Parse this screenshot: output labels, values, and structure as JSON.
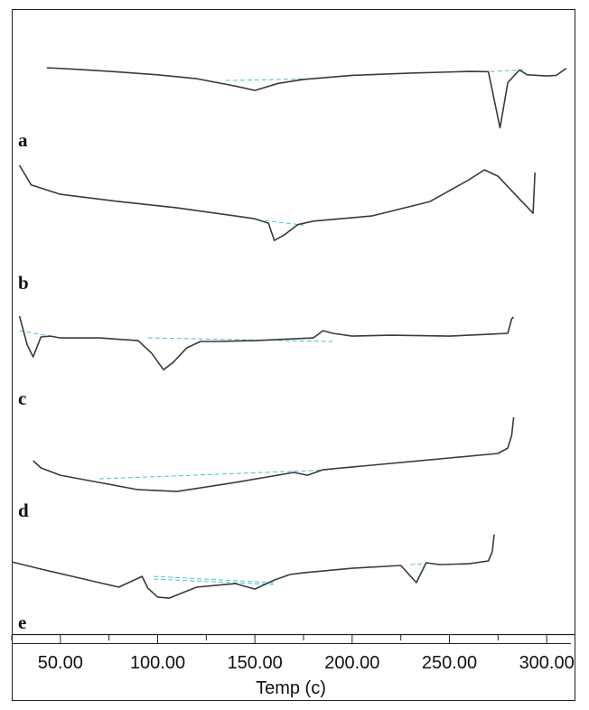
{
  "chart_data": {
    "type": "line",
    "xlabel": "Temp (c)",
    "xlim": [
      25,
      312
    ],
    "x_ticks": [
      50,
      100,
      150,
      200,
      250,
      300
    ],
    "x_tick_labels": [
      "50.00",
      "100.00",
      "150.00",
      "200.00",
      "250.00",
      "300.00"
    ],
    "grid": false,
    "colors": {
      "trace": "#3a3a3a",
      "baseline": "#3fc4d4",
      "axis": "#222222"
    },
    "series": [
      {
        "name": "a",
        "x": [
          43,
          60,
          80,
          100,
          120,
          140,
          150,
          162,
          175,
          200,
          230,
          260,
          270,
          276,
          280,
          286,
          290,
          300,
          305,
          310
        ],
        "y": [
          0.0,
          -1.7,
          -4.1,
          -6.8,
          -10.6,
          -17.8,
          -22.0,
          -15.2,
          -11.3,
          -7.4,
          -5.2,
          -3.6,
          -3.8,
          -58.3,
          -14.5,
          -2.1,
          -6.8,
          -8.0,
          -7.4,
          -0.6
        ],
        "baselines": [
          {
            "x": [
              135,
              178
            ],
            "y": [
              -12.4,
              -10.8
            ]
          },
          {
            "x": [
              271,
              288
            ],
            "y": [
              -3.6,
              -2.1
            ]
          }
        ]
      },
      {
        "name": "b",
        "x": [
          29,
          35,
          50,
          80,
          110,
          140,
          150,
          157,
          160,
          165,
          172,
          180,
          210,
          240,
          260,
          268,
          275,
          285,
          290,
          293,
          294
        ],
        "y": [
          0.0,
          -19.0,
          -28.2,
          -35.2,
          -41.3,
          -49.2,
          -51.9,
          -56.2,
          -73.0,
          -67.7,
          -57.6,
          -54.2,
          -49.2,
          -35.2,
          -14.1,
          -4.4,
          -10.6,
          -30.8,
          -40.5,
          -46.6,
          -7.0
        ],
        "baselines": [
          {
            "x": [
              155,
              175
            ],
            "y": [
              -53.7,
              -58.1
            ]
          }
        ]
      },
      {
        "name": "c",
        "x": [
          29,
          33,
          36,
          40,
          45,
          50,
          70,
          90,
          97,
          103,
          108,
          115,
          122,
          130,
          150,
          180,
          185,
          190,
          200,
          220,
          250,
          270,
          280,
          282,
          283
        ],
        "y": [
          0.0,
          -28.2,
          -39.6,
          -20.2,
          -19.4,
          -21.1,
          -21.1,
          -23.8,
          -36.1,
          -52.0,
          -44.9,
          -30.8,
          -24.6,
          -24.6,
          -23.8,
          -21.1,
          -14.1,
          -16.7,
          -19.4,
          -18.5,
          -19.4,
          -17.6,
          -16.7,
          -2.6,
          -0.9
        ],
        "baselines": [
          {
            "x": [
              29,
              45
            ],
            "y": [
              -14.1,
              -19.4
            ]
          },
          {
            "x": [
              95,
              190
            ],
            "y": [
              -21.1,
              -24.6
            ]
          }
        ]
      },
      {
        "name": "d",
        "x": [
          36,
          40,
          50,
          70,
          90,
          110,
          140,
          170,
          177,
          185,
          210,
          250,
          275,
          280,
          282,
          283
        ],
        "y": [
          0.0,
          -7.0,
          -14.1,
          -21.1,
          -28.2,
          -29.9,
          -21.1,
          -11.4,
          -14.1,
          -8.8,
          -4.4,
          2.6,
          7.0,
          12.3,
          24.6,
          42.2
        ],
        "baselines": [
          {
            "x": [
              70,
              190
            ],
            "y": [
              -17.6,
              -8.8
            ]
          }
        ]
      },
      {
        "name": "e",
        "x": [
          25,
          40,
          60,
          80,
          92,
          95,
          100,
          106,
          120,
          140,
          150,
          160,
          168,
          175,
          200,
          225,
          233,
          238,
          245,
          260,
          270,
          272,
          273
        ],
        "y": [
          0.0,
          -7.0,
          -15.8,
          -24.6,
          -14.1,
          -25.5,
          -34.3,
          -35.2,
          -24.6,
          -21.1,
          -26.4,
          -17.6,
          -12.3,
          -10.6,
          -6.2,
          -3.5,
          -20.2,
          -0.9,
          -2.6,
          -1.8,
          0.9,
          9.7,
          26.4
        ],
        "baselines": [
          {
            "x": [
              98,
              160
            ],
            "y": [
              -14.1,
              -20.2
            ]
          },
          {
            "x": [
              98,
              160
            ],
            "y": [
              -16.7,
              -22.0
            ]
          },
          {
            "x": [
              230,
              238
            ],
            "y": [
              -2.6,
              -1.8
            ]
          }
        ]
      }
    ]
  }
}
